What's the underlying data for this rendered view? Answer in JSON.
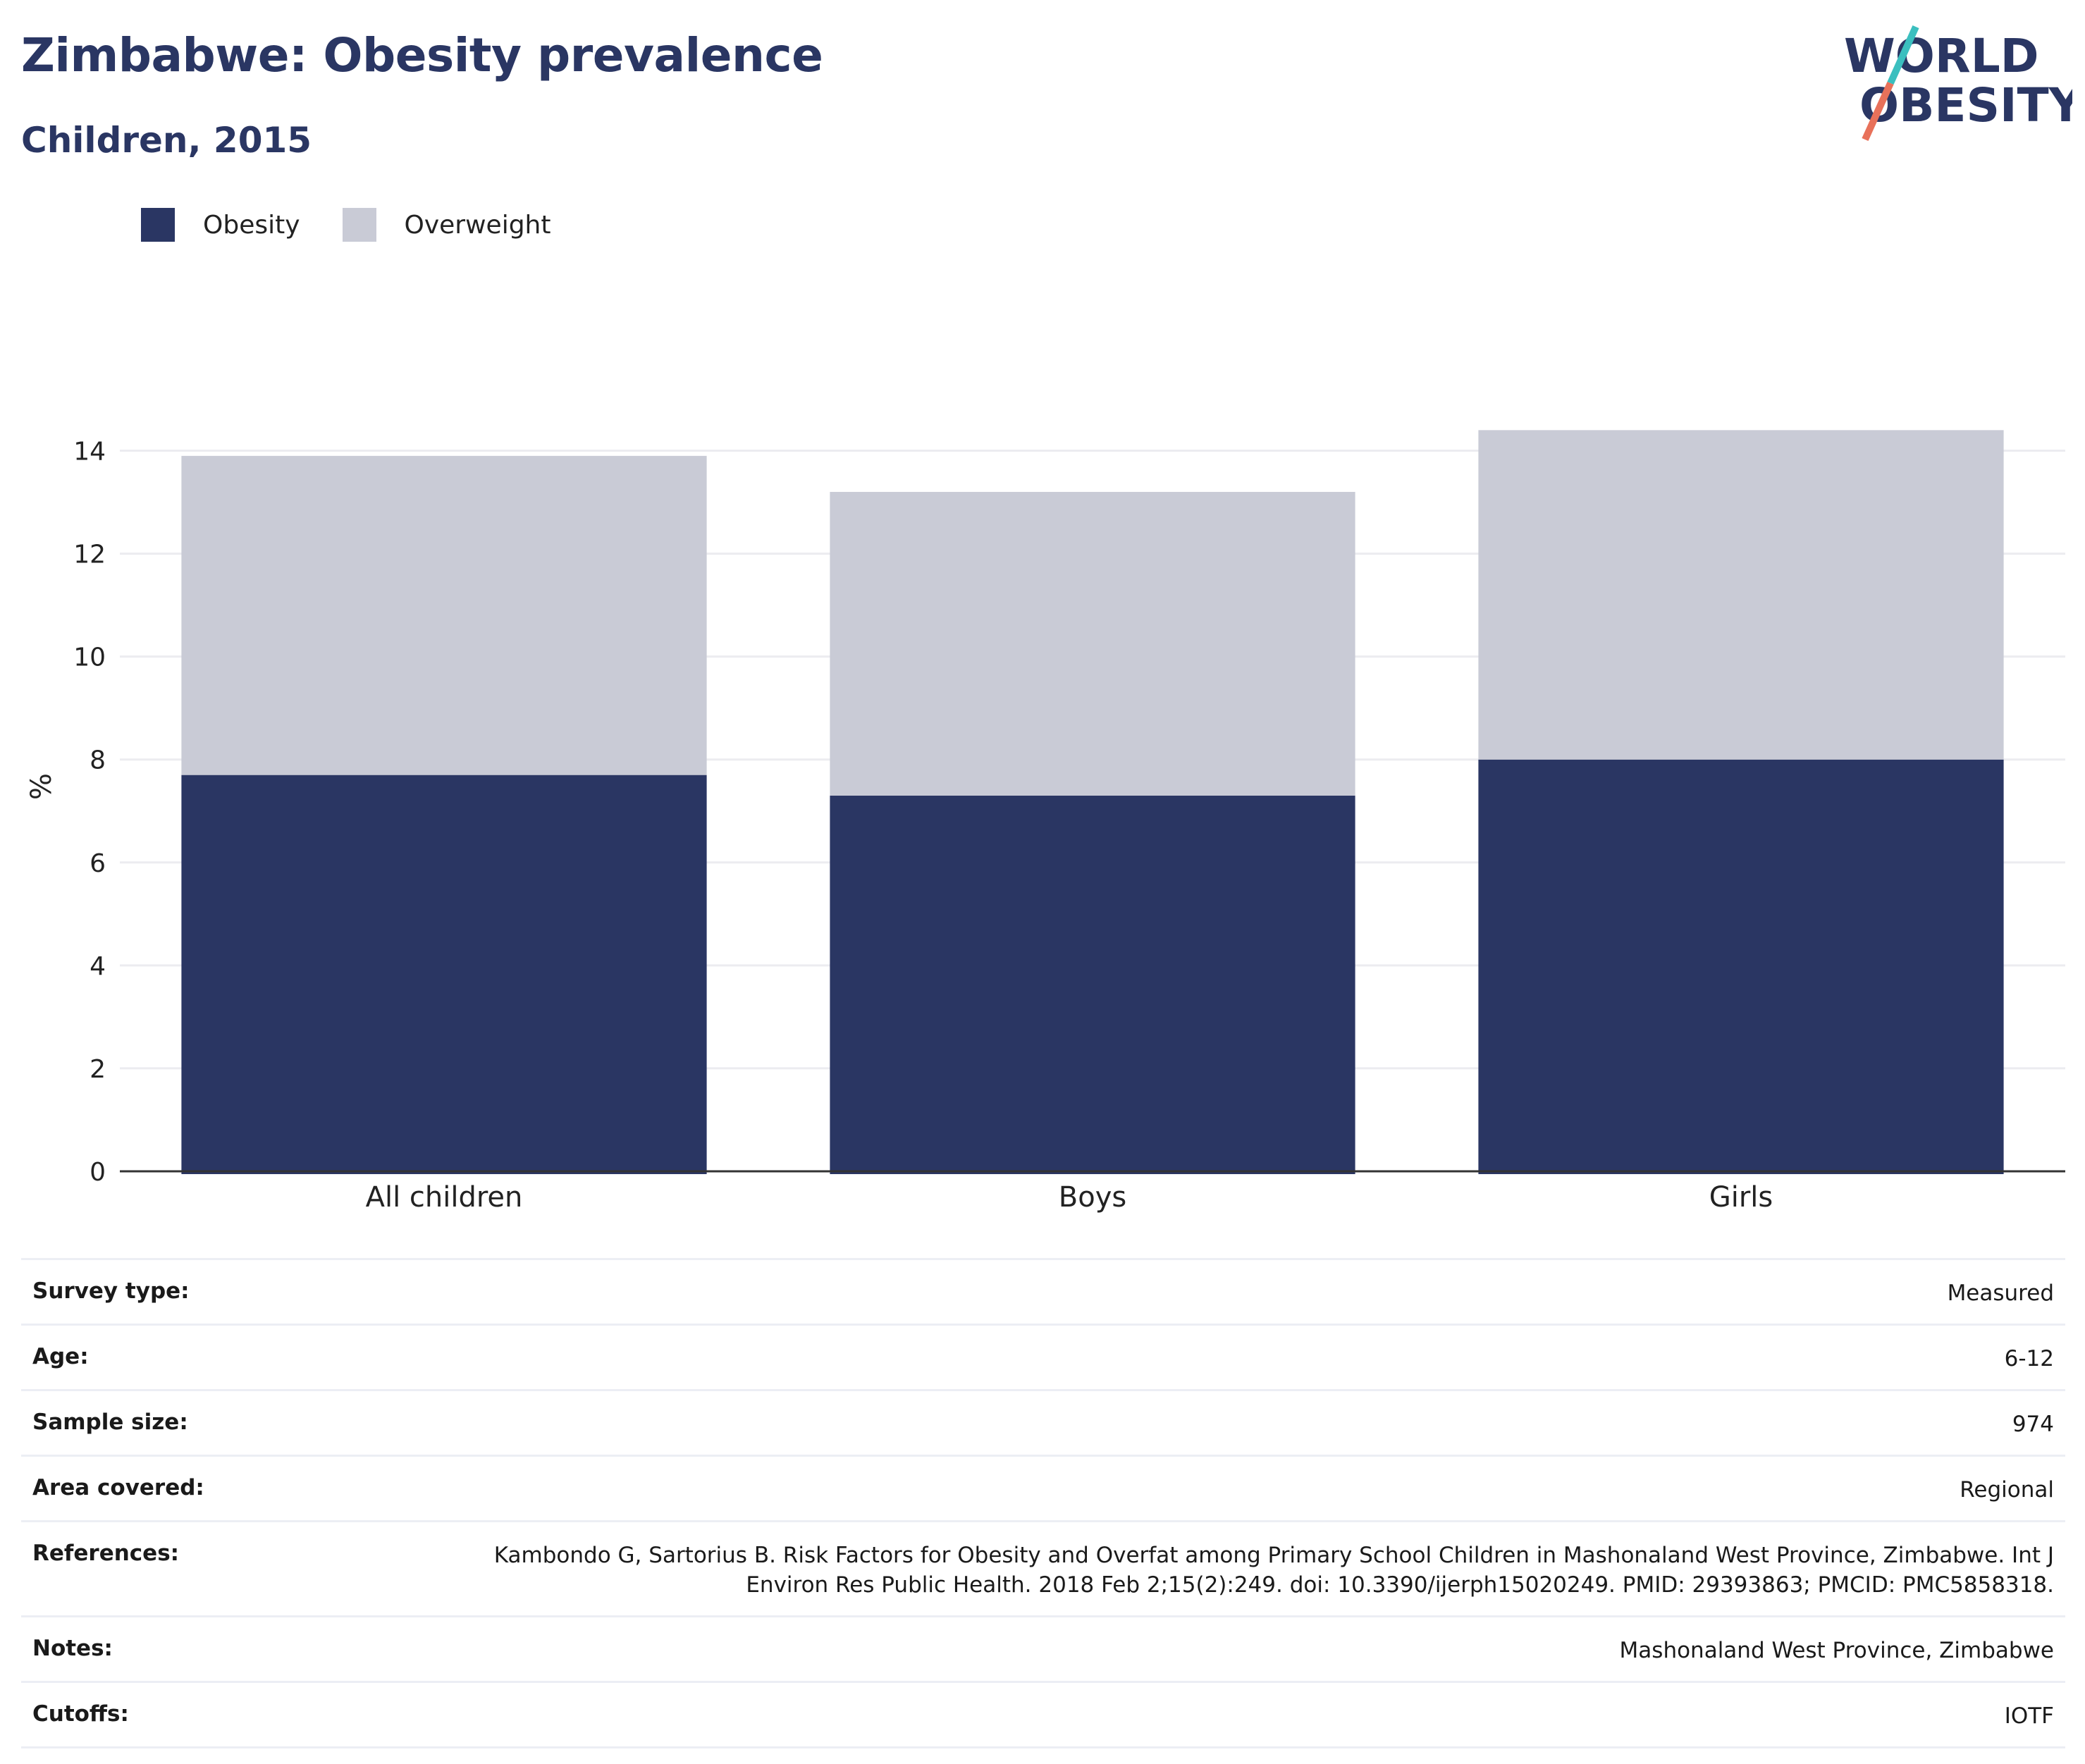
{
  "title": "Zimbabwe: Obesity prevalence",
  "subtitle": "Children, 2015",
  "logo": {
    "line1": "WORLD",
    "line2": "OBESITY",
    "accent_teal": "#3bbfbf",
    "accent_coral": "#e8715a"
  },
  "legend": [
    {
      "label": "Obesity",
      "color": "#2a3663"
    },
    {
      "label": "Overweight",
      "color": "#c9cbd6"
    }
  ],
  "chart_data": {
    "type": "bar",
    "stacked": true,
    "categories": [
      "All children",
      "Boys",
      "Girls"
    ],
    "series": [
      {
        "name": "Obesity",
        "color": "#2a3663",
        "values": [
          7.7,
          7.3,
          8.0
        ]
      },
      {
        "name": "Overweight",
        "color": "#c9cbd6",
        "values": [
          6.2,
          5.9,
          6.4
        ]
      }
    ],
    "ylabel": "%",
    "ylim": [
      0,
      15.5
    ],
    "yticks": [
      0,
      2,
      4,
      6,
      8,
      10,
      12,
      14
    ],
    "grid": true,
    "legend_position": "top-left"
  },
  "info": [
    {
      "label": "Survey type:",
      "value": "Measured"
    },
    {
      "label": "Age:",
      "value": "6-12"
    },
    {
      "label": "Sample size:",
      "value": "974"
    },
    {
      "label": "Area covered:",
      "value": "Regional"
    },
    {
      "label": "References:",
      "value": "Kambondo G, Sartorius B. Risk Factors for Obesity and Overfat among Primary School Children in Mashonaland West Province, Zimbabwe. Int J Environ Res Public Health. 2018 Feb 2;15(2):249. doi: 10.3390/ijerph15020249. PMID: 29393863; PMCID: PMC5858318."
    },
    {
      "label": "Notes:",
      "value": "Mashonaland West Province, Zimbabwe"
    },
    {
      "label": "Cutoffs:",
      "value": "IOTF"
    }
  ]
}
